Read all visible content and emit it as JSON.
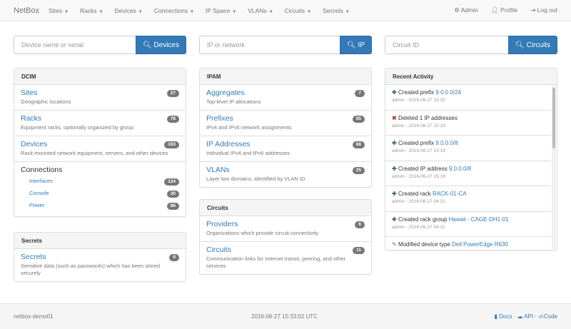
{
  "nav": {
    "brand": "NetBox",
    "menus": [
      "Sites",
      "Racks",
      "Devices",
      "Connections",
      "IP Space",
      "VLANs",
      "Circuits",
      "Secrets"
    ],
    "admin": "Admin",
    "profile": "Profile",
    "logout": "Log out"
  },
  "search": [
    {
      "placeholder": "Device name or serial",
      "button": "Devices"
    },
    {
      "placeholder": "IP or network",
      "button": "IP"
    },
    {
      "placeholder": "Circuit ID",
      "button": "Circuits"
    }
  ],
  "dcim": {
    "title": "DCIM",
    "items": [
      {
        "title": "Sites",
        "desc": "Geographic locations",
        "count": "27"
      },
      {
        "title": "Racks",
        "desc": "Equipment racks, optionally organized by group",
        "count": "78"
      },
      {
        "title": "Devices",
        "desc": "Rack-mounted network equipment, servers, and other devices",
        "count": "163"
      }
    ],
    "connections": {
      "title": "Connections",
      "items": [
        {
          "label": "Interfaces",
          "count": "124"
        },
        {
          "label": "Console",
          "count": "30"
        },
        {
          "label": "Power",
          "count": "86"
        }
      ]
    }
  },
  "secrets": {
    "title": "Secrets",
    "items": [
      {
        "title": "Secrets",
        "desc": "Sensitive data (such as passwords) which has been stored securely",
        "count": "0"
      }
    ]
  },
  "ipam": {
    "title": "IPAM",
    "items": [
      {
        "title": "Aggregates",
        "desc": "Top-level IP allocations",
        "count": "7"
      },
      {
        "title": "Prefixes",
        "desc": "IPv4 and IPv6 network assignments",
        "count": "95"
      },
      {
        "title": "IP Addresses",
        "desc": "Individual IPv4 and IPv6 addresses",
        "count": "88"
      },
      {
        "title": "VLANs",
        "desc": "Layer two domains, identified by VLAN ID",
        "count": "25"
      }
    ]
  },
  "circuits": {
    "title": "Circuits",
    "items": [
      {
        "title": "Providers",
        "desc": "Organizations which provide circuit connectivity",
        "count": "6"
      },
      {
        "title": "Circuits",
        "desc": "Communication links for Internet transit, peering, and other services",
        "count": "11"
      }
    ]
  },
  "activity": {
    "title": "Recent Activity",
    "items": [
      {
        "icon": "plus",
        "text": "Created prefix",
        "link": "9.0.0.0/24",
        "meta": "admin - 2016-06-27 15:20"
      },
      {
        "icon": "x",
        "text": "Deleted 1 IP addresses",
        "link": "",
        "meta": "admin - 2016-06-27 15:19"
      },
      {
        "icon": "plus",
        "text": "Created prefix",
        "link": "9.0.0.0/8",
        "meta": "admin - 2016-06-27 15:19"
      },
      {
        "icon": "plus",
        "text": "Created IP address",
        "link": "9.0.0.0/8",
        "meta": "admin - 2016-06-27 15:18"
      },
      {
        "icon": "plus",
        "text": "Created rack",
        "link": "RACK-01-CA",
        "meta": "admin - 2016-06-27 04:21"
      },
      {
        "icon": "plus",
        "text": "Created rack group",
        "link": "Hawaii - CAGE-DH1-01",
        "meta": "admin - 2016-06-27 04:21"
      },
      {
        "icon": "pencil",
        "text": "Modified device type",
        "link": "Dell PowerEdge R630",
        "meta": ""
      }
    ]
  },
  "footer": {
    "host": "netbox-demo01",
    "time": "2016-06-27 15:33:02 UTC",
    "docs": "Docs",
    "api": "API",
    "code": "Code",
    "sep": "·"
  }
}
